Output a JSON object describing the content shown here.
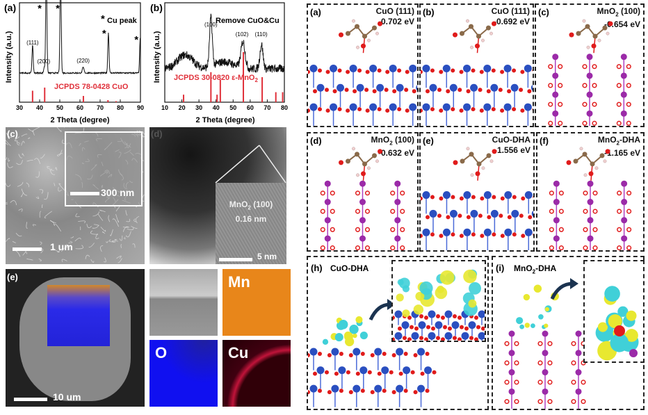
{
  "chart_data": [
    {
      "type": "line",
      "panel": "(a)",
      "xlabel": "2 Theta (degree)",
      "ylabel": "Intensity (a.u.)",
      "xlim": [
        30,
        90
      ],
      "xticks": [
        30,
        40,
        50,
        60,
        70,
        80,
        90
      ],
      "peaks": [
        {
          "x": 36.5,
          "label": "(111)"
        },
        {
          "x": 42.3,
          "label": "(200)"
        },
        {
          "x": 43.3,
          "label": "*"
        },
        {
          "x": 50.4,
          "label": "*"
        },
        {
          "x": 61.6,
          "label": "(220)"
        },
        {
          "x": 74.1,
          "label": "*"
        },
        {
          "x": 89.9,
          "label": "*"
        }
      ],
      "legend_note": "Cu peak",
      "reference": {
        "name": "JCPDS 78-0428 CuO",
        "x": [
          36.5,
          42.5,
          61.7,
          73.9,
          77.9
        ],
        "values": [
          0.55,
          0.7,
          0.3,
          0.1,
          0.05
        ]
      },
      "colors": {
        "pattern": "#111111",
        "reference": "#e0303a"
      }
    },
    {
      "type": "line",
      "panel": "(b)",
      "title": "Remove CuO&Cu",
      "xlabel": "2 Theta (degree)",
      "ylabel": "Intensity (a.u.)",
      "xlim": [
        10,
        80
      ],
      "xticks": [
        10,
        20,
        30,
        40,
        50,
        60,
        70,
        80
      ],
      "peaks": [
        {
          "x": 37.0,
          "label": "(100)"
        },
        {
          "x": 55.8,
          "label": "(102)"
        },
        {
          "x": 66.6,
          "label": "(110)"
        }
      ],
      "reference": {
        "name": "JCPDS 30-0820 ε-MnO",
        "name_sub": "2",
        "x": [
          21.0,
          37.0,
          40.6,
          42.5,
          56.0,
          67.0,
          75.0,
          79.0
        ],
        "values": [
          0.15,
          0.6,
          0.15,
          0.45,
          1.0,
          0.5,
          0.2,
          0.2
        ]
      },
      "colors": {
        "pattern": "#111111",
        "reference": "#e0303a"
      }
    }
  ],
  "left": {
    "c": {
      "label": "(c)",
      "scale_main": "1 um",
      "scale_inset": "300 nm"
    },
    "d": {
      "label": "(d)",
      "inset_l1": "MnO",
      "inset_sub": "2",
      "inset_l1b": " (100)",
      "inset_l2": "0.16 nm",
      "scale": "5 nm"
    },
    "e": {
      "label": "(e)",
      "scale": "10 um"
    },
    "maps": [
      {
        "element": "",
        "color": "#9a9a9a"
      },
      {
        "element": "Mn",
        "color": "#e8861a"
      },
      {
        "element": "O",
        "color": "#1010f0"
      },
      {
        "element": "Cu",
        "color": "#5a0010"
      }
    ]
  },
  "right": {
    "panels": [
      {
        "label": "(a)",
        "surface": "CuO (111)",
        "energy": "-0.702 eV"
      },
      {
        "label": "(b)",
        "surface": "CuO (111)",
        "energy": "-0.692 eV"
      },
      {
        "label": "(c)",
        "surface": "MnO",
        "sub": "2",
        "surface_b": " (100)",
        "energy": "-0.654 eV"
      },
      {
        "label": "(d)",
        "surface": "MnO",
        "sub": "2",
        "surface_b": " (100)",
        "energy": "-0.632 eV"
      },
      {
        "label": "(e)",
        "surface": "CuO-DHA",
        "energy": "-1.556 eV"
      },
      {
        "label": "(f)",
        "surface": "MnO",
        "sub": "2",
        "surface_b": "-DHA",
        "energy": "-1.165 eV"
      }
    ],
    "h": {
      "label": "(h)",
      "title": "CuO-DHA"
    },
    "i": {
      "label": "(i)",
      "title": "MnO",
      "title_sub": "2",
      "title_b": "-DHA"
    },
    "colors": {
      "Cu": "#2a4fc0",
      "O": "#e01b1b",
      "Mn": "#9b2aa8",
      "C": "#8a6a4a",
      "H": "#f0d0d0",
      "iso_yellow": "#e8e830",
      "iso_cyan": "#40d0d8"
    }
  }
}
